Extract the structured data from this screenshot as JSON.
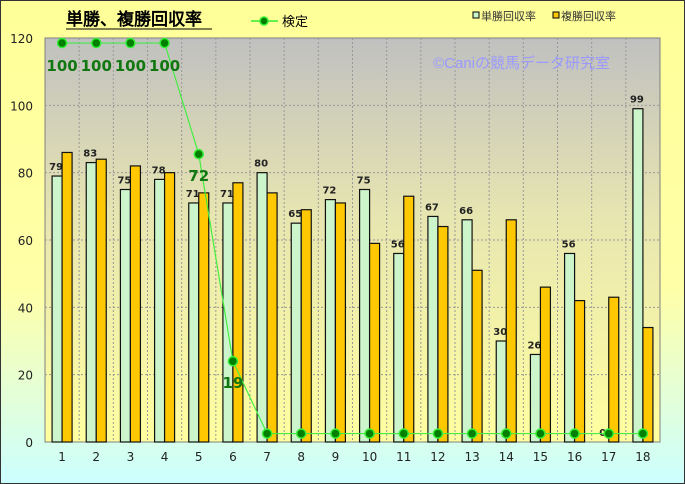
{
  "chart_data": {
    "type": "bar",
    "title": "単勝、複勝回収率",
    "watermark": "©Caniの競馬データ研究室",
    "categories": [
      "1",
      "2",
      "3",
      "4",
      "5",
      "6",
      "7",
      "8",
      "9",
      "10",
      "11",
      "12",
      "13",
      "14",
      "15",
      "16",
      "17",
      "18"
    ],
    "ylim": [
      0,
      120
    ],
    "yticks": [
      0,
      20,
      40,
      60,
      80,
      100,
      120
    ],
    "grid": true,
    "legend_position": "top-right",
    "series": [
      {
        "name": "単勝回収率",
        "color": "#ccf5cc",
        "values": [
          79,
          83,
          75,
          78,
          71,
          71,
          80,
          65,
          72,
          75,
          56,
          67,
          66,
          30,
          26,
          56,
          0,
          99
        ],
        "labels": [
          "79",
          "83",
          "75",
          "78",
          "71",
          "71",
          "80",
          "65",
          "72",
          "75",
          "56",
          "67",
          "66",
          "30",
          "26",
          "56",
          "0",
          "99"
        ]
      },
      {
        "name": "複勝回収率",
        "color": "#ffc800",
        "values": [
          86,
          84,
          82,
          80,
          74,
          77,
          74,
          69,
          71,
          59,
          73,
          64,
          51,
          66,
          46,
          42,
          43,
          34
        ]
      }
    ],
    "line": {
      "name": "検定",
      "color": "#007f00",
      "values": [
        118.5,
        118.5,
        118.5,
        118.5,
        85.5,
        24,
        2.5,
        2.5,
        2.5,
        2.5,
        2.5,
        2.5,
        2.5,
        2.5,
        2.5,
        2.5,
        2.5,
        2.5
      ],
      "labels": [
        "100",
        "100",
        "100",
        "100",
        "72",
        "19"
      ]
    }
  }
}
